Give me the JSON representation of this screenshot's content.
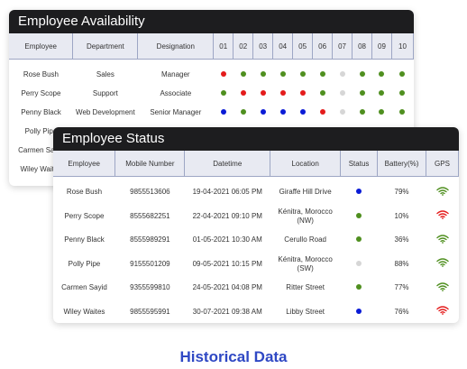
{
  "colors": {
    "red": "#e41b1b",
    "green": "#4f8f1f",
    "blue": "#0a1bd6",
    "grey": "#d6d6d6",
    "header_bg": "#1d1d1f",
    "caption": "#2f48c4"
  },
  "availability": {
    "title": "Employee Availability",
    "columns": [
      "Employee",
      "Department",
      "Designation",
      "01",
      "02",
      "03",
      "04",
      "05",
      "06",
      "07",
      "08",
      "09",
      "10"
    ],
    "rows": [
      {
        "employee": "Rose Bush",
        "department": "Sales",
        "designation": "Manager",
        "days": [
          "red",
          "green",
          "green",
          "green",
          "green",
          "green",
          "grey",
          "green",
          "green",
          "green"
        ]
      },
      {
        "employee": "Perry Scope",
        "department": "Support",
        "designation": "Associate",
        "days": [
          "green",
          "red",
          "red",
          "red",
          "red",
          "green",
          "grey",
          "green",
          "green",
          "green"
        ]
      },
      {
        "employee": "Penny Black",
        "department": "Web Development",
        "designation": "Senior Manager",
        "days": [
          "blue",
          "green",
          "blue",
          "blue",
          "blue",
          "red",
          "grey",
          "green",
          "green",
          "green"
        ]
      },
      {
        "employee": "Polly Pipe",
        "department": "",
        "designation": "",
        "days": []
      },
      {
        "employee": "Carmen Sayid",
        "department": "",
        "designation": "",
        "days": []
      },
      {
        "employee": "Wiley Waites",
        "department": "",
        "designation": "",
        "days": []
      }
    ]
  },
  "status": {
    "title": "Employee Status",
    "columns": [
      "Employee",
      "Mobile Number",
      "Datetime",
      "Location",
      "Status",
      "Battery(%)",
      "GPS"
    ],
    "rows": [
      {
        "employee": "Rose Bush",
        "mobile": "9855513606",
        "datetime": "19-04-2021 06:05 PM",
        "location": "Giraffe Hill Drive",
        "status": "blue",
        "battery": "79%",
        "gps": "green"
      },
      {
        "employee": "Perry Scope",
        "mobile": "8555682251",
        "datetime": "22-04-2021 09:10 PM",
        "location": "Kénitra, Morocco (NW)",
        "status": "green",
        "battery": "10%",
        "gps": "red"
      },
      {
        "employee": "Penny Black",
        "mobile": "8555989291",
        "datetime": "01-05-2021 10:30 AM",
        "location": "Cerullo Road",
        "status": "green",
        "battery": "36%",
        "gps": "green"
      },
      {
        "employee": "Polly Pipe",
        "mobile": "9155501209",
        "datetime": "09-05-2021 10:15 PM",
        "location": "Kénitra, Morocco (SW)",
        "status": "grey",
        "battery": "88%",
        "gps": "green"
      },
      {
        "employee": "Carmen Sayid",
        "mobile": "9355599810",
        "datetime": "24-05-2021 04:08 PM",
        "location": "Ritter Street",
        "status": "green",
        "battery": "77%",
        "gps": "green"
      },
      {
        "employee": "Wiley Waites",
        "mobile": "9855595991",
        "datetime": "30-07-2021 09:38 AM",
        "location": "Libby Street",
        "status": "blue",
        "battery": "76%",
        "gps": "red"
      }
    ]
  },
  "caption": "Historical Data"
}
